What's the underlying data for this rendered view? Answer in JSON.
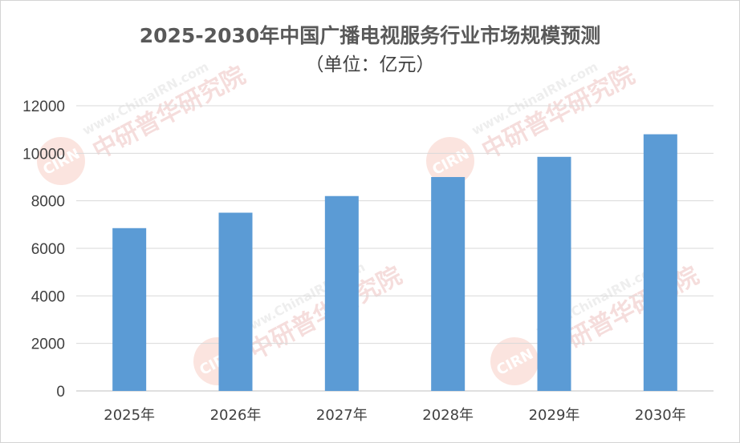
{
  "chart_data": {
    "type": "bar",
    "title": "2025-2030年中国广播电视服务行业市场规模预测",
    "subtitle": "（单位：亿元）",
    "categories": [
      "2025年",
      "2026年",
      "2027年",
      "2028年",
      "2029年",
      "2030年"
    ],
    "values": [
      6850,
      7500,
      8200,
      9000,
      9850,
      10800
    ],
    "ylim": [
      0,
      12000
    ],
    "yticks": [
      0,
      2000,
      4000,
      6000,
      8000,
      10000,
      12000
    ],
    "grid": true,
    "legend": "none",
    "bar_color": "#5b9bd5"
  },
  "watermark": {
    "badge": "CIRN",
    "name": "中研普华研究院",
    "url": "www.ChinaIRN.com"
  }
}
